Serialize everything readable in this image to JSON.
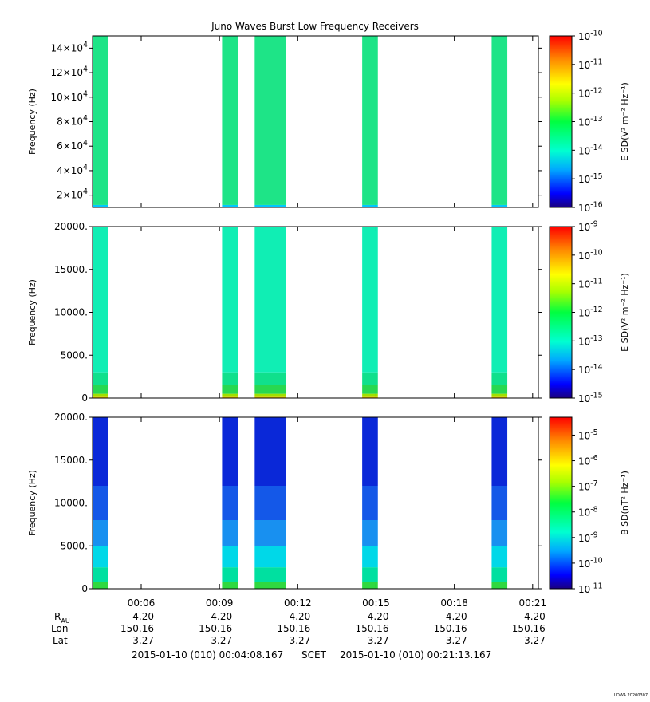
{
  "title": "Juno Waves Burst Low Frequency Receivers",
  "time_axis": {
    "start_min": 4.136,
    "end_min": 21.22,
    "ticks": [
      "00:06",
      "00:09",
      "00:12",
      "00:15",
      "00:18",
      "00:21"
    ],
    "tick_minutes": [
      6,
      9,
      12,
      15,
      18,
      21
    ]
  },
  "ephemeris": {
    "labels": {
      "rau_main": "R",
      "rau_sub": "AU",
      "lon": "Lon",
      "lat": "Lat"
    },
    "rau": [
      "4.20",
      "4.20",
      "4.20",
      "4.20",
      "4.20",
      "4.20"
    ],
    "lon": [
      "150.16",
      "150.16",
      "150.16",
      "150.16",
      "150.16",
      "150.16"
    ],
    "lat": [
      "3.27",
      "3.27",
      "3.27",
      "3.27",
      "3.27",
      "3.27"
    ]
  },
  "footer": {
    "start": "2015-01-10 (010) 00:04:08.167",
    "scet": "SCET",
    "end": "2015-01-10 (010) 00:21:13.167",
    "stamp": "UIOWA 20200307"
  },
  "chart_data": [
    {
      "type": "heatmap",
      "ylabel": "Frequency (Hz)",
      "ylim": [
        10000,
        150000
      ],
      "yticks": [
        {
          "value": 20000,
          "base": "2×10",
          "exp": "4"
        },
        {
          "value": 40000,
          "base": "4×10",
          "exp": "4"
        },
        {
          "value": 60000,
          "base": "6×10",
          "exp": "4"
        },
        {
          "value": 80000,
          "base": "8×10",
          "exp": "4"
        },
        {
          "value": 100000,
          "base": "10×10",
          "exp": "4"
        },
        {
          "value": 120000,
          "base": "12×10",
          "exp": "4"
        },
        {
          "value": 140000,
          "base": "14×10",
          "exp": "4"
        }
      ],
      "colorbar": {
        "label": "E SD",
        "units": "(V² m⁻² Hz⁻¹)",
        "range_log": [
          -16,
          -10
        ],
        "ticks": [
          {
            "base": "10",
            "exp": "-10"
          },
          {
            "base": "10",
            "exp": "-11"
          },
          {
            "base": "10",
            "exp": "-12"
          },
          {
            "base": "10",
            "exp": "-13"
          },
          {
            "base": "10",
            "exp": "-14"
          },
          {
            "base": "10",
            "exp": "-15"
          },
          {
            "base": "10",
            "exp": "-16"
          }
        ]
      },
      "intervals_min": [
        [
          4.136,
          4.74
        ],
        [
          9.1,
          9.7
        ],
        [
          10.35,
          11.55
        ],
        [
          14.47,
          15.07
        ],
        [
          19.43,
          20.03
        ]
      ],
      "bands": [
        {
          "from": 10000,
          "to": 12000,
          "color": "#00c8ff"
        },
        {
          "from": 12000,
          "to": 150000,
          "color": "#1ee487"
        }
      ]
    },
    {
      "type": "heatmap",
      "ylabel": "Frequency (Hz)",
      "ylim": [
        0,
        20000
      ],
      "yticks": [
        {
          "value": 0,
          "base": "0",
          "exp": ""
        },
        {
          "value": 5000,
          "base": "5000.",
          "exp": ""
        },
        {
          "value": 10000,
          "base": "10000.",
          "exp": ""
        },
        {
          "value": 15000,
          "base": "15000.",
          "exp": ""
        },
        {
          "value": 20000,
          "base": "20000.",
          "exp": ""
        }
      ],
      "colorbar": {
        "label": "E SD",
        "units": "(V² m⁻² Hz⁻¹)",
        "range_log": [
          -15,
          -9
        ],
        "ticks": [
          {
            "base": "10",
            "exp": "-9"
          },
          {
            "base": "10",
            "exp": "-10"
          },
          {
            "base": "10",
            "exp": "-11"
          },
          {
            "base": "10",
            "exp": "-12"
          },
          {
            "base": "10",
            "exp": "-13"
          },
          {
            "base": "10",
            "exp": "-14"
          },
          {
            "base": "10",
            "exp": "-15"
          }
        ]
      },
      "intervals_min": [
        [
          4.136,
          4.74
        ],
        [
          9.1,
          9.7
        ],
        [
          10.35,
          11.55
        ],
        [
          14.47,
          15.07
        ],
        [
          19.43,
          20.03
        ]
      ],
      "bands": [
        {
          "from": 0,
          "to": 150,
          "color": "#e8c800"
        },
        {
          "from": 150,
          "to": 500,
          "color": "#a0e000"
        },
        {
          "from": 500,
          "to": 1500,
          "color": "#28d850"
        },
        {
          "from": 1500,
          "to": 3000,
          "color": "#10e08c"
        },
        {
          "from": 3000,
          "to": 20000,
          "color": "#10eeb4"
        }
      ]
    },
    {
      "type": "heatmap",
      "ylabel": "Frequency (Hz)",
      "ylim": [
        0,
        20000
      ],
      "yticks": [
        {
          "value": 0,
          "base": "0",
          "exp": ""
        },
        {
          "value": 5000,
          "base": "5000.",
          "exp": ""
        },
        {
          "value": 10000,
          "base": "10000.",
          "exp": ""
        },
        {
          "value": 15000,
          "base": "15000.",
          "exp": ""
        },
        {
          "value": 20000,
          "base": "20000.",
          "exp": ""
        }
      ],
      "colorbar": {
        "label": "B SD",
        "units": "(nT² Hz⁻¹)",
        "range_log": [
          -11,
          -4.3
        ],
        "ticks": [
          {
            "base": "10",
            "exp": "-5"
          },
          {
            "base": "10",
            "exp": "-6"
          },
          {
            "base": "10",
            "exp": "-7"
          },
          {
            "base": "10",
            "exp": "-8"
          },
          {
            "base": "10",
            "exp": "-9"
          },
          {
            "base": "10",
            "exp": "-10"
          },
          {
            "base": "10",
            "exp": "-11"
          }
        ],
        "tick_logs": [
          -5,
          -6,
          -7,
          -8,
          -9,
          -10,
          -11
        ]
      },
      "intervals_min": [
        [
          4.136,
          4.74
        ],
        [
          9.1,
          9.7
        ],
        [
          10.35,
          11.55
        ],
        [
          14.47,
          15.07
        ],
        [
          19.43,
          20.03
        ]
      ],
      "bands": [
        {
          "from": 0,
          "to": 800,
          "color": "#30d840"
        },
        {
          "from": 800,
          "to": 2500,
          "color": "#00e0a0"
        },
        {
          "from": 2500,
          "to": 5000,
          "color": "#00d8e8"
        },
        {
          "from": 5000,
          "to": 8000,
          "color": "#1890f0"
        },
        {
          "from": 8000,
          "to": 12000,
          "color": "#1458e8"
        },
        {
          "from": 12000,
          "to": 20000,
          "color": "#0a28d8"
        }
      ]
    }
  ]
}
